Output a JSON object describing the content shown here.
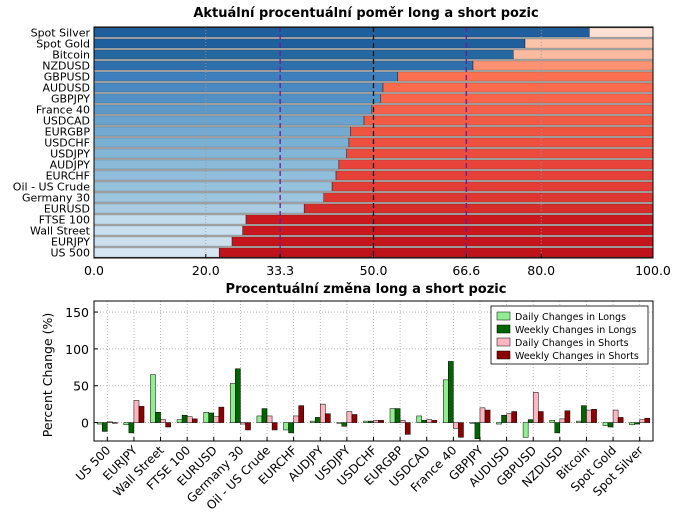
{
  "chart_data": [
    {
      "type": "bar",
      "orientation": "horizontal",
      "stacked": true,
      "title": "Aktuální procentuální poměr long a short pozic",
      "categories": [
        "Spot Silver",
        "Spot Gold",
        "Bitcoin",
        "NZDUSD",
        "GBPUSD",
        "AUDUSD",
        "GBPJPY",
        "France 40",
        "USDCAD",
        "EURGBP",
        "USDCHF",
        "USDJPY",
        "AUDJPY",
        "EURCHF",
        "Oil - US Crude",
        "Germany 30",
        "EURUSD",
        "FTSE 100",
        "Wall Street",
        "EURJPY",
        "US 500"
      ],
      "series": [
        {
          "values": [
            88.6,
            77.1,
            75.0,
            67.8,
            54.3,
            51.7,
            51.3,
            49.7,
            48.3,
            45.9,
            45.6,
            45.2,
            43.8,
            43.3,
            42.6,
            41.1,
            37.6,
            27.2,
            26.6,
            24.7,
            22.4
          ]
        },
        {
          "values": [
            11.4,
            22.9,
            25.0,
            32.2,
            45.7,
            48.3,
            48.7,
            50.3,
            51.7,
            54.1,
            54.4,
            54.8,
            56.2,
            56.7,
            57.4,
            58.9,
            62.4,
            72.8,
            73.4,
            75.3,
            77.6
          ]
        }
      ],
      "xlim": [
        0,
        100
      ],
      "xticks": [
        "0.0",
        "20.0",
        "33.3",
        "50.0",
        "66.6",
        "80.0",
        "100.0"
      ],
      "reference_lines": [
        33.3,
        50.0,
        66.6
      ],
      "grid": true
    },
    {
      "type": "bar",
      "title": "Procentuální změna long a short pozic",
      "ylabel": "Percent Change (%)",
      "ylim": [
        -25,
        165
      ],
      "yticks": [
        "0",
        "50",
        "100",
        "150"
      ],
      "categories": [
        "US 500",
        "EURJPY",
        "Wall Street",
        "FTSE 100",
        "EURUSD",
        "Germany 30",
        "Oil - US Crude",
        "EURCHF",
        "AUDJPY",
        "USDJPY",
        "USDCHF",
        "EURGBP",
        "USDCAD",
        "France 40",
        "GBPJPY",
        "AUDUSD",
        "GBPUSD",
        "NZDUSD",
        "Bitcoin",
        "Spot Gold",
        "Spot Silver"
      ],
      "series": [
        {
          "name": "Daily Changes in Longs",
          "values": [
            -2,
            -3,
            65,
            4,
            14,
            53,
            9,
            -10,
            2,
            -1,
            2,
            19,
            9,
            58,
            -1,
            -2,
            -20,
            3,
            2,
            -4,
            -3
          ]
        },
        {
          "name": "Weekly Changes in Longs",
          "values": [
            -12,
            -14,
            14,
            10,
            13,
            73,
            19,
            -14,
            7,
            -5,
            2,
            19,
            3,
            83,
            -22,
            10,
            4,
            -14,
            23,
            -6,
            -2
          ]
        },
        {
          "name": "Daily Changes in Shorts",
          "values": [
            1,
            30,
            4,
            8,
            8,
            -2,
            9,
            9,
            25,
            15,
            3,
            3,
            4,
            -8,
            20,
            12,
            41,
            5,
            17,
            17,
            4
          ]
        },
        {
          "name": "Weekly Changes in Shorts",
          "values": [
            -1,
            22,
            -6,
            5,
            21,
            -10,
            -10,
            23,
            12,
            11,
            3,
            -16,
            3,
            -20,
            17,
            15,
            15,
            16,
            18,
            7,
            6
          ]
        }
      ],
      "legend": "top-right",
      "grid": true,
      "colors": {
        "daily_longs": "#90ee90",
        "weekly_longs": "#006400",
        "daily_shorts": "#ffb6c1",
        "weekly_shorts": "#8b0000"
      }
    }
  ]
}
